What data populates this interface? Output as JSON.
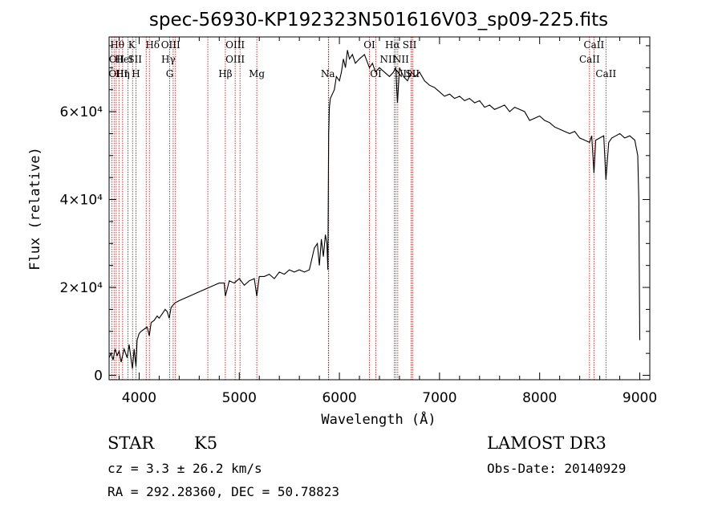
{
  "chart_data": {
    "type": "line",
    "title": "spec-56930-KP192323N501616V03_sp09-225.fits",
    "xlabel": "Wavelength (Å)",
    "ylabel": "Flux (relative)",
    "xlim": [
      3700,
      9100
    ],
    "ylim": [
      -1000,
      77000
    ],
    "x_ticks": [
      {
        "value": 4000,
        "label": "4000"
      },
      {
        "value": 5000,
        "label": "5000"
      },
      {
        "value": 6000,
        "label": "6000"
      },
      {
        "value": 7000,
        "label": "7000"
      },
      {
        "value": 8000,
        "label": "8000"
      },
      {
        "value": 9000,
        "label": "9000"
      }
    ],
    "y_ticks": [
      {
        "value": 0,
        "label": "0"
      },
      {
        "value": 20000,
        "label": "2×10⁴"
      },
      {
        "value": 40000,
        "label": "4×10⁴"
      },
      {
        "value": 60000,
        "label": "6×10⁴"
      }
    ],
    "series": [
      {
        "name": "flux",
        "x": [
          3700,
          3720,
          3740,
          3760,
          3780,
          3800,
          3820,
          3850,
          3880,
          3900,
          3920,
          3933,
          3950,
          3968,
          3980,
          4000,
          4020,
          4050,
          4080,
          4101,
          4120,
          4150,
          4180,
          4200,
          4230,
          4260,
          4280,
          4300,
          4320,
          4340,
          4360,
          4400,
          4450,
          4500,
          4550,
          4600,
          4650,
          4700,
          4750,
          4800,
          4850,
          4861,
          4900,
          4950,
          5000,
          5050,
          5100,
          5150,
          5175,
          5200,
          5250,
          5300,
          5350,
          5400,
          5450,
          5500,
          5550,
          5600,
          5650,
          5700,
          5750,
          5780,
          5800,
          5820,
          5840,
          5860,
          5875,
          5885,
          5893,
          5900,
          5910,
          5930,
          5950,
          5970,
          6000,
          6020,
          6040,
          6060,
          6080,
          6100,
          6130,
          6160,
          6200,
          6250,
          6300,
          6330,
          6360,
          6400,
          6450,
          6500,
          6540,
          6563,
          6580,
          6600,
          6640,
          6680,
          6720,
          6760,
          6800,
          6850,
          6900,
          6950,
          7000,
          7050,
          7100,
          7150,
          7200,
          7250,
          7300,
          7350,
          7400,
          7450,
          7500,
          7550,
          7600,
          7650,
          7700,
          7750,
          7800,
          7850,
          7900,
          7950,
          8000,
          8050,
          8100,
          8150,
          8200,
          8250,
          8300,
          8350,
          8400,
          8450,
          8498,
          8520,
          8542,
          8560,
          8600,
          8640,
          8662,
          8690,
          8720,
          8760,
          8800,
          8850,
          8900,
          8950,
          8980,
          8990,
          9000
        ],
        "values": [
          4000,
          5000,
          3500,
          6000,
          4500,
          5500,
          3000,
          6000,
          4000,
          7000,
          3500,
          1500,
          6000,
          2000,
          8000,
          9500,
          10000,
          10500,
          11000,
          9000,
          12000,
          12500,
          13500,
          13000,
          14000,
          15000,
          14500,
          13000,
          15500,
          16000,
          16500,
          17000,
          17500,
          18000,
          18500,
          19000,
          19500,
          20000,
          20500,
          21000,
          21000,
          18000,
          21500,
          21000,
          22000,
          20500,
          21500,
          22000,
          18000,
          22500,
          22500,
          23000,
          22000,
          23500,
          23000,
          24000,
          23500,
          24000,
          23500,
          24000,
          29000,
          30000,
          25000,
          31000,
          27000,
          32000,
          30000,
          24000,
          55000,
          61000,
          63000,
          64000,
          65000,
          68000,
          67000,
          69000,
          72000,
          70000,
          74000,
          72000,
          73000,
          71000,
          72000,
          73000,
          70000,
          71000,
          69000,
          70000,
          69000,
          68000,
          69000,
          70000,
          62000,
          70000,
          68000,
          67000,
          69000,
          68000,
          69000,
          67000,
          66000,
          65500,
          64500,
          63500,
          64000,
          63000,
          63500,
          62500,
          63000,
          62000,
          62500,
          61000,
          61500,
          60500,
          61000,
          61500,
          60000,
          61000,
          60500,
          60000,
          58000,
          58500,
          59000,
          58000,
          57500,
          56500,
          56000,
          55500,
          55000,
          55500,
          54000,
          53500,
          53000,
          54500,
          46000,
          53500,
          54000,
          54500,
          44500,
          53000,
          54000,
          54500,
          55000,
          54000,
          54500,
          53500,
          50000,
          40000,
          8000
        ]
      }
    ],
    "spectral_lines": [
      {
        "label": "Hθ",
        "x": 3798,
        "row": 0,
        "dx": -2
      },
      {
        "label": "K",
        "x": 3934,
        "row": 0,
        "dx": -1
      },
      {
        "label": "Hδ",
        "x": 4102,
        "row": 0,
        "dx": 4
      },
      {
        "label": "OIII",
        "x": 4363,
        "row": 0,
        "dx": -6
      },
      {
        "label": "OIII",
        "x": 4959,
        "row": 0,
        "dx": 0
      },
      {
        "label": "OI",
        "x": 6300,
        "row": 0,
        "dx": 0
      },
      {
        "label": "Hα",
        "x": 6563,
        "row": 0,
        "dx": -4
      },
      {
        "label": "SII",
        "x": 6717,
        "row": 0,
        "dx": -2
      },
      {
        "label": "CaII",
        "x": 8542,
        "row": 0,
        "dx": 0
      },
      {
        "label": "OII",
        "x": 3727,
        "row": 1,
        "dx": 6
      },
      {
        "label": "HeI",
        "x": 3889,
        "row": 1,
        "dx": -5
      },
      {
        "label": "SII",
        "x": 4070,
        "row": 1,
        "dx": -14
      },
      {
        "label": "Hγ",
        "x": 4340,
        "row": 1,
        "dx": -6
      },
      {
        "label": "OIII",
        "x": 5007,
        "row": 1,
        "dx": -6
      },
      {
        "label": "NII",
        "x": 6583,
        "row": 1,
        "dx": 4
      },
      {
        "label": "NII",
        "x": 6548,
        "row": 1,
        "dx": -8
      },
      {
        "label": "CaII",
        "x": 8498,
        "row": 1,
        "dx": 0
      },
      {
        "label": "OIII",
        "x": 3727,
        "row": 2,
        "dx": 8
      },
      {
        "label": "Hη",
        "x": 3835,
        "row": 2,
        "dx": 0
      },
      {
        "label": "H",
        "x": 3968,
        "row": 2,
        "dx": 0
      },
      {
        "label": "G",
        "x": 4305,
        "row": 2,
        "dx": 0
      },
      {
        "label": "Hβ",
        "x": 4861,
        "row": 2,
        "dx": 0
      },
      {
        "label": "Mg",
        "x": 5175,
        "row": 2,
        "dx": 0
      },
      {
        "label": "Na",
        "x": 5893,
        "row": 2,
        "dx": -1
      },
      {
        "label": "OI",
        "x": 6364,
        "row": 2,
        "dx": 0
      },
      {
        "label": "NII",
        "x": 6583,
        "row": 2,
        "dx": 6
      },
      {
        "label": "SII",
        "x": 6731,
        "row": 2,
        "dx": 0
      },
      {
        "label": "CaII",
        "x": 8662,
        "row": 2,
        "dx": 0
      }
    ],
    "extra_line_markers": [
      3750,
      3771,
      3889,
      4686,
      5890,
      6548,
      6583,
      6717,
      6731,
      8498,
      8542
    ]
  },
  "info": {
    "class": "STAR",
    "subclass": "K5",
    "survey": "LAMOST DR3",
    "redshift": "cz = 3.3 ± 26.2 km/s",
    "obs_date": "Obs-Date: 20140929",
    "coords": "RA = 292.28360, DEC =  50.78823"
  },
  "colors": {
    "line_marker": "#c00000",
    "spectrum": "#000000",
    "axis": "#000000"
  }
}
